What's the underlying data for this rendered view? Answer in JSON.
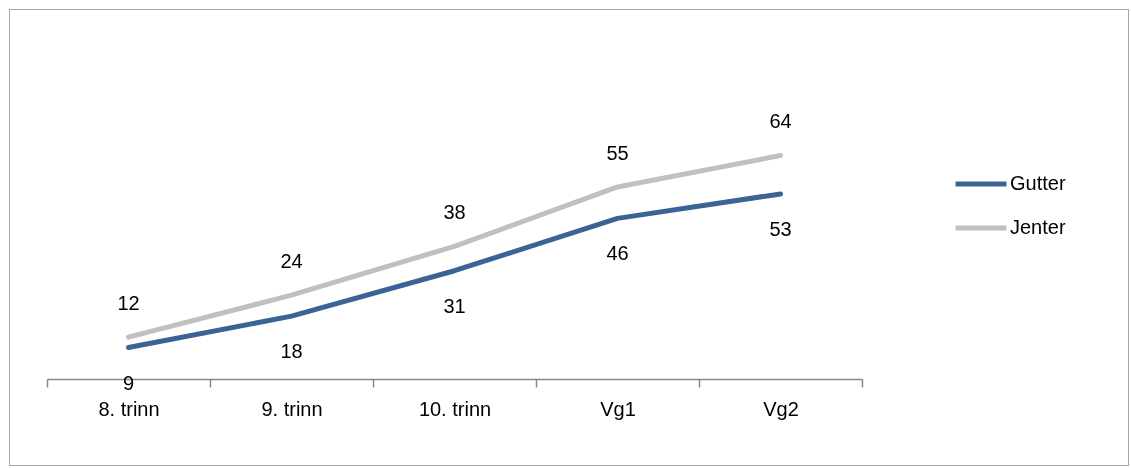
{
  "chart_data": {
    "type": "line",
    "categories": [
      "8. trinn",
      "9. trinn",
      "10. trinn",
      "Vg1",
      "Vg2"
    ],
    "series": [
      {
        "name": "Gutter",
        "color": "#3a6496",
        "values": [
          9,
          18,
          31,
          46,
          53
        ]
      },
      {
        "name": "Jenter",
        "color": "#c0c0c0",
        "values": [
          12,
          24,
          38,
          55,
          64
        ]
      }
    ],
    "data_labels": true,
    "legend": "right",
    "tick_labels": "x"
  }
}
